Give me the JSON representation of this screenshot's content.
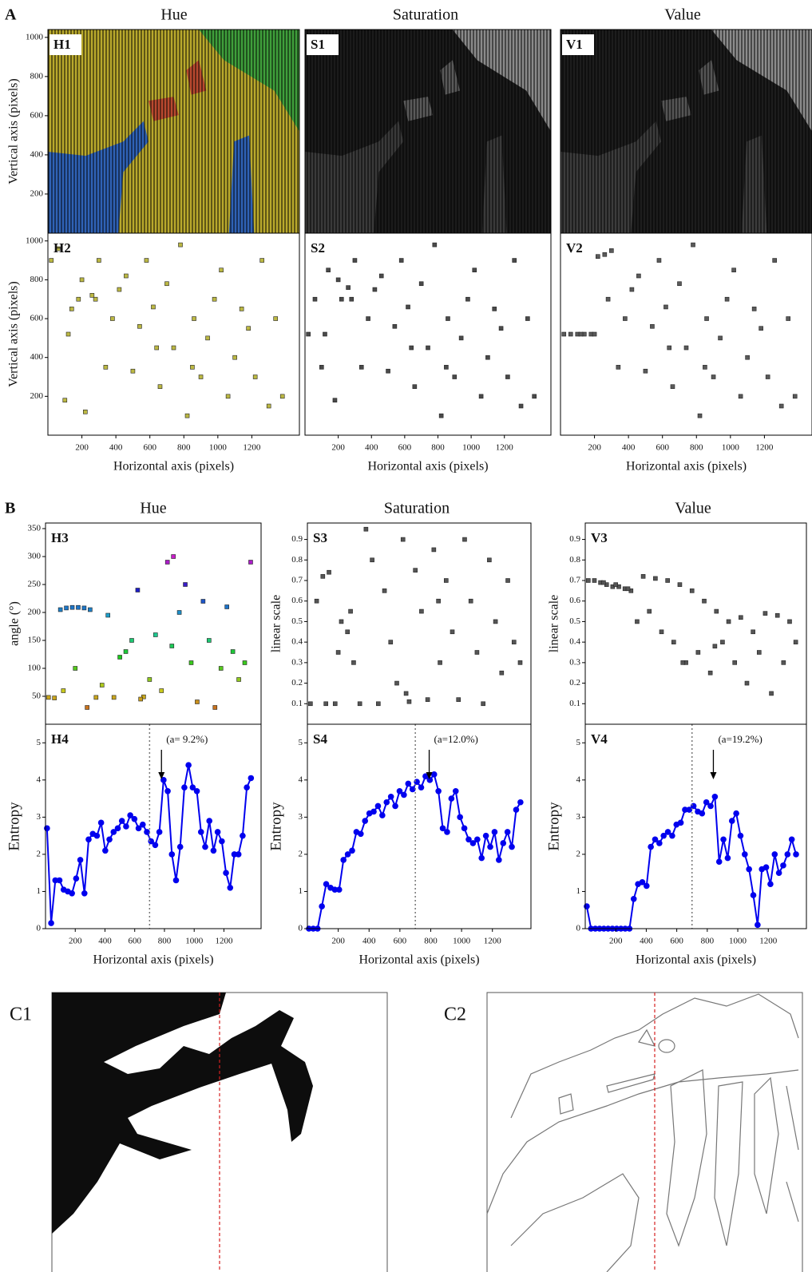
{
  "sections": [
    {
      "letter": "A",
      "columns": [
        "Hue",
        "Saturation",
        "Value"
      ]
    },
    {
      "letter": "B",
      "columns": [
        "Hue",
        "Saturation",
        "Value"
      ]
    }
  ],
  "c_panels": [
    "C1",
    "C2"
  ],
  "chart_data": [
    {
      "type": "image",
      "title": "H1",
      "ylabel": "Vertical axis (pixels)",
      "xlim": [
        0,
        1480
      ],
      "ylim": [
        0,
        1040
      ],
      "yticks": [
        200,
        400,
        600,
        800,
        1000
      ],
      "colors": [
        "#b9a92c",
        "#2f62b6",
        "#b9492f",
        "#3f9f3b"
      ]
    },
    {
      "type": "image",
      "title": "S1",
      "xlim": [
        0,
        1480
      ],
      "ylim": [
        0,
        1040
      ],
      "colors": [
        "#1b1b1b",
        "#3a3a3a",
        "#5a5a5a",
        "#8a8a8a"
      ]
    },
    {
      "type": "image",
      "title": "V1",
      "xlim": [
        0,
        1480
      ],
      "ylim": [
        0,
        1040
      ],
      "colors": [
        "#1d1d1d",
        "#3c3c3c",
        "#555555",
        "#8c8c8c"
      ]
    },
    {
      "type": "scatter",
      "title": "H2",
      "ylabel": "Vertical axis (pixels)",
      "xlabel": "Horizontal axis (pixels)",
      "xlim": [
        0,
        1480
      ],
      "ylim": [
        0,
        1040
      ],
      "yticks": [
        200,
        400,
        600,
        800,
        1000
      ],
      "xticks": [
        200,
        400,
        600,
        800,
        1000,
        1200
      ],
      "color": "#bcb843",
      "x": [
        20,
        60,
        100,
        140,
        180,
        220,
        260,
        300,
        340,
        380,
        420,
        460,
        500,
        540,
        580,
        620,
        660,
        700,
        740,
        780,
        820,
        860,
        900,
        940,
        980,
        1020,
        1060,
        1100,
        1140,
        1180,
        1220,
        1260,
        1300,
        1340,
        1380,
        120,
        200,
        280,
        640,
        850
      ],
      "values": [
        900,
        960,
        180,
        650,
        700,
        120,
        720,
        900,
        350,
        600,
        750,
        820,
        330,
        560,
        900,
        660,
        250,
        780,
        450,
        980,
        100,
        600,
        300,
        500,
        700,
        850,
        200,
        400,
        650,
        550,
        300,
        900,
        150,
        600,
        200,
        520,
        800,
        700,
        450,
        350
      ]
    },
    {
      "type": "scatter",
      "title": "S2",
      "xlabel": "Horizontal axis (pixels)",
      "xlim": [
        0,
        1480
      ],
      "ylim": [
        0,
        1040
      ],
      "xticks": [
        200,
        400,
        600,
        800,
        1000,
        1200
      ],
      "color": "#4a4a4a",
      "x": [
        20,
        60,
        100,
        140,
        180,
        220,
        260,
        300,
        340,
        380,
        420,
        460,
        500,
        540,
        580,
        620,
        660,
        700,
        740,
        780,
        820,
        860,
        900,
        940,
        980,
        1020,
        1060,
        1100,
        1140,
        1180,
        1220,
        1260,
        1300,
        1340,
        1380,
        120,
        200,
        280,
        640,
        850
      ],
      "values": [
        520,
        700,
        350,
        850,
        180,
        700,
        760,
        900,
        350,
        600,
        750,
        820,
        330,
        560,
        900,
        660,
        250,
        780,
        450,
        980,
        100,
        600,
        300,
        500,
        700,
        850,
        200,
        400,
        650,
        550,
        300,
        900,
        150,
        600,
        200,
        520,
        800,
        700,
        450,
        350
      ]
    },
    {
      "type": "scatter",
      "title": "V2",
      "xlabel": "Horizontal axis (pixels)",
      "xlim": [
        0,
        1480
      ],
      "ylim": [
        0,
        1040
      ],
      "xticks": [
        200,
        400,
        600,
        800,
        1000,
        1200
      ],
      "color": "#5a5a5a",
      "x": [
        20,
        60,
        100,
        140,
        180,
        220,
        260,
        300,
        340,
        380,
        420,
        460,
        500,
        540,
        580,
        620,
        660,
        700,
        740,
        780,
        820,
        860,
        900,
        940,
        980,
        1020,
        1060,
        1100,
        1140,
        1180,
        1220,
        1260,
        1300,
        1340,
        1380,
        120,
        200,
        280,
        640,
        850
      ],
      "values": [
        520,
        520,
        520,
        520,
        520,
        920,
        930,
        950,
        350,
        600,
        750,
        820,
        330,
        560,
        900,
        660,
        250,
        780,
        450,
        980,
        100,
        600,
        300,
        500,
        700,
        850,
        200,
        400,
        650,
        550,
        300,
        900,
        150,
        600,
        200,
        520,
        520,
        700,
        450,
        350
      ]
    },
    {
      "type": "scatter",
      "title": "H3",
      "ylabel": "angle (°)",
      "xlim": [
        0,
        1450
      ],
      "ylim": [
        0,
        360
      ],
      "yticks": [
        50,
        100,
        150,
        200,
        250,
        300,
        350
      ],
      "colormap": "hsv",
      "x": [
        20,
        60,
        100,
        140,
        180,
        220,
        260,
        300,
        340,
        380,
        420,
        460,
        500,
        540,
        580,
        620,
        660,
        700,
        740,
        780,
        820,
        860,
        900,
        940,
        980,
        1020,
        1060,
        1100,
        1140,
        1180,
        1220,
        1260,
        1300,
        1340,
        1380,
        120,
        200,
        280,
        640,
        850
      ],
      "values": [
        48,
        47,
        205,
        208,
        209,
        209,
        208,
        205,
        48,
        70,
        195,
        48,
        120,
        130,
        150,
        240,
        49,
        80,
        160,
        60,
        290,
        300,
        200,
        250,
        110,
        40,
        220,
        150,
        30,
        100,
        210,
        130,
        80,
        110,
        290,
        60,
        100,
        30,
        45,
        140
      ]
    },
    {
      "type": "scatter",
      "title": "S3",
      "ylabel": "linear scale",
      "xlim": [
        0,
        1450
      ],
      "ylim": [
        0,
        0.98
      ],
      "yticks": [
        0.1,
        0.2,
        0.3,
        0.4,
        0.5,
        0.6,
        0.7,
        0.8,
        0.9
      ],
      "color": "#555555",
      "x": [
        20,
        60,
        100,
        140,
        180,
        220,
        260,
        300,
        340,
        380,
        420,
        460,
        500,
        540,
        580,
        620,
        660,
        700,
        740,
        780,
        820,
        860,
        900,
        940,
        980,
        1020,
        1060,
        1100,
        1140,
        1180,
        1220,
        1260,
        1300,
        1340,
        1380,
        120,
        200,
        280,
        640,
        850
      ],
      "values": [
        0.1,
        0.6,
        0.72,
        0.74,
        0.1,
        0.5,
        0.45,
        0.3,
        0.1,
        0.95,
        0.8,
        0.1,
        0.65,
        0.4,
        0.2,
        0.9,
        0.11,
        0.75,
        0.55,
        0.12,
        0.85,
        0.3,
        0.7,
        0.45,
        0.12,
        0.9,
        0.6,
        0.35,
        0.1,
        0.8,
        0.5,
        0.25,
        0.7,
        0.4,
        0.3,
        0.1,
        0.35,
        0.55,
        0.15,
        0.6
      ]
    },
    {
      "type": "scatter",
      "title": "V3",
      "ylabel": "linear scale",
      "xlim": [
        0,
        1450
      ],
      "ylim": [
        0,
        0.98
      ],
      "yticks": [
        0.1,
        0.2,
        0.3,
        0.4,
        0.5,
        0.6,
        0.7,
        0.8,
        0.9
      ],
      "color": "#555555",
      "x": [
        20,
        60,
        100,
        140,
        180,
        220,
        260,
        300,
        340,
        380,
        420,
        460,
        500,
        540,
        580,
        620,
        660,
        700,
        740,
        780,
        820,
        860,
        900,
        940,
        980,
        1020,
        1060,
        1100,
        1140,
        1180,
        1220,
        1260,
        1300,
        1340,
        1380,
        120,
        200,
        280,
        640,
        850
      ],
      "values": [
        0.7,
        0.7,
        0.69,
        0.68,
        0.67,
        0.67,
        0.66,
        0.65,
        0.5,
        0.72,
        0.55,
        0.71,
        0.45,
        0.7,
        0.4,
        0.68,
        0.3,
        0.65,
        0.35,
        0.6,
        0.25,
        0.55,
        0.4,
        0.5,
        0.3,
        0.52,
        0.2,
        0.45,
        0.35,
        0.54,
        0.15,
        0.53,
        0.3,
        0.5,
        0.4,
        0.69,
        0.68,
        0.66,
        0.3,
        0.38
      ]
    },
    {
      "type": "line",
      "title": "H4",
      "ylabel": "Entropy",
      "xlabel": "Horizontal axis (pixels)",
      "xlim": [
        0,
        1450
      ],
      "ylim": [
        0,
        5.5
      ],
      "yticks": [
        0,
        1,
        2,
        3,
        4,
        5
      ],
      "xticks": [
        200,
        400,
        600,
        800,
        1000,
        1200
      ],
      "color": "#0000ee",
      "vline": 700,
      "annotation": {
        "text": "(a= 9.2%)",
        "x": 780
      },
      "x": [
        10,
        38,
        66,
        94,
        122,
        150,
        178,
        206,
        234,
        262,
        290,
        318,
        346,
        374,
        402,
        430,
        458,
        486,
        514,
        542,
        570,
        598,
        626,
        654,
        682,
        710,
        738,
        766,
        794,
        822,
        850,
        878,
        906,
        934,
        962,
        990,
        1018,
        1046,
        1074,
        1102,
        1130,
        1158,
        1186,
        1214,
        1242,
        1270,
        1298,
        1326,
        1354,
        1382
      ],
      "values": [
        2.7,
        0.15,
        1.3,
        1.3,
        1.05,
        1.0,
        0.95,
        1.35,
        1.85,
        0.95,
        2.4,
        2.55,
        2.5,
        2.85,
        2.1,
        2.4,
        2.6,
        2.7,
        2.9,
        2.75,
        3.05,
        2.95,
        2.7,
        2.8,
        2.6,
        2.35,
        2.25,
        2.6,
        4.0,
        3.7,
        2.0,
        1.3,
        2.2,
        3.8,
        4.4,
        3.8,
        3.7,
        2.6,
        2.2,
        2.9,
        2.1,
        2.6,
        2.35,
        1.5,
        1.1,
        2.0,
        2.0,
        2.5,
        3.8,
        4.05
      ]
    },
    {
      "type": "line",
      "title": "S4",
      "ylabel": "Entropy",
      "xlabel": "Horizontal axis (pixels)",
      "xlim": [
        0,
        1450
      ],
      "ylim": [
        0,
        5.5
      ],
      "yticks": [
        0,
        1,
        2,
        3,
        4,
        5
      ],
      "xticks": [
        200,
        400,
        600,
        800,
        1000,
        1200
      ],
      "color": "#0000ee",
      "vline": 700,
      "annotation": {
        "text": "(a=12.0%)",
        "x": 790
      },
      "x": [
        10,
        38,
        66,
        94,
        122,
        150,
        178,
        206,
        234,
        262,
        290,
        318,
        346,
        374,
        402,
        430,
        458,
        486,
        514,
        542,
        570,
        598,
        626,
        654,
        682,
        710,
        738,
        766,
        794,
        822,
        850,
        878,
        906,
        934,
        962,
        990,
        1018,
        1046,
        1074,
        1102,
        1130,
        1158,
        1186,
        1214,
        1242,
        1270,
        1298,
        1326,
        1354,
        1382
      ],
      "values": [
        0,
        0,
        0,
        0.6,
        1.2,
        1.1,
        1.05,
        1.05,
        1.85,
        2.0,
        2.1,
        2.6,
        2.55,
        2.9,
        3.1,
        3.15,
        3.3,
        3.05,
        3.4,
        3.55,
        3.3,
        3.7,
        3.6,
        3.9,
        3.75,
        3.95,
        3.8,
        4.1,
        4.0,
        4.15,
        3.7,
        2.7,
        2.6,
        3.5,
        3.7,
        3.0,
        2.7,
        2.4,
        2.3,
        2.4,
        1.9,
        2.5,
        2.2,
        2.6,
        1.85,
        2.3,
        2.6,
        2.2,
        3.2,
        3.4
      ]
    },
    {
      "type": "line",
      "title": "V4",
      "ylabel": "Entropy",
      "xlabel": "Horizontal axis (pixels)",
      "xlim": [
        0,
        1450
      ],
      "ylim": [
        0,
        5.5
      ],
      "yticks": [
        0,
        1,
        2,
        3,
        4,
        5
      ],
      "xticks": [
        200,
        400,
        600,
        800,
        1000,
        1200
      ],
      "color": "#0000ee",
      "vline": 700,
      "annotation": {
        "text": "(a=19.2%)",
        "x": 840
      },
      "x": [
        10,
        38,
        66,
        94,
        122,
        150,
        178,
        206,
        234,
        262,
        290,
        318,
        346,
        374,
        402,
        430,
        458,
        486,
        514,
        542,
        570,
        598,
        626,
        654,
        682,
        710,
        738,
        766,
        794,
        822,
        850,
        878,
        906,
        934,
        962,
        990,
        1018,
        1046,
        1074,
        1102,
        1130,
        1158,
        1186,
        1214,
        1242,
        1270,
        1298,
        1326,
        1354,
        1382
      ],
      "values": [
        0.6,
        0,
        0,
        0,
        0,
        0,
        0,
        0,
        0,
        0,
        0,
        0.8,
        1.2,
        1.25,
        1.15,
        2.2,
        2.4,
        2.3,
        2.5,
        2.6,
        2.5,
        2.8,
        2.85,
        3.2,
        3.2,
        3.3,
        3.15,
        3.1,
        3.4,
        3.3,
        3.55,
        1.8,
        2.4,
        1.9,
        2.9,
        3.1,
        2.5,
        2.0,
        1.6,
        0.9,
        0.1,
        1.6,
        1.65,
        1.2,
        2.0,
        1.5,
        1.7,
        2.0,
        2.4,
        2.0
      ]
    }
  ]
}
